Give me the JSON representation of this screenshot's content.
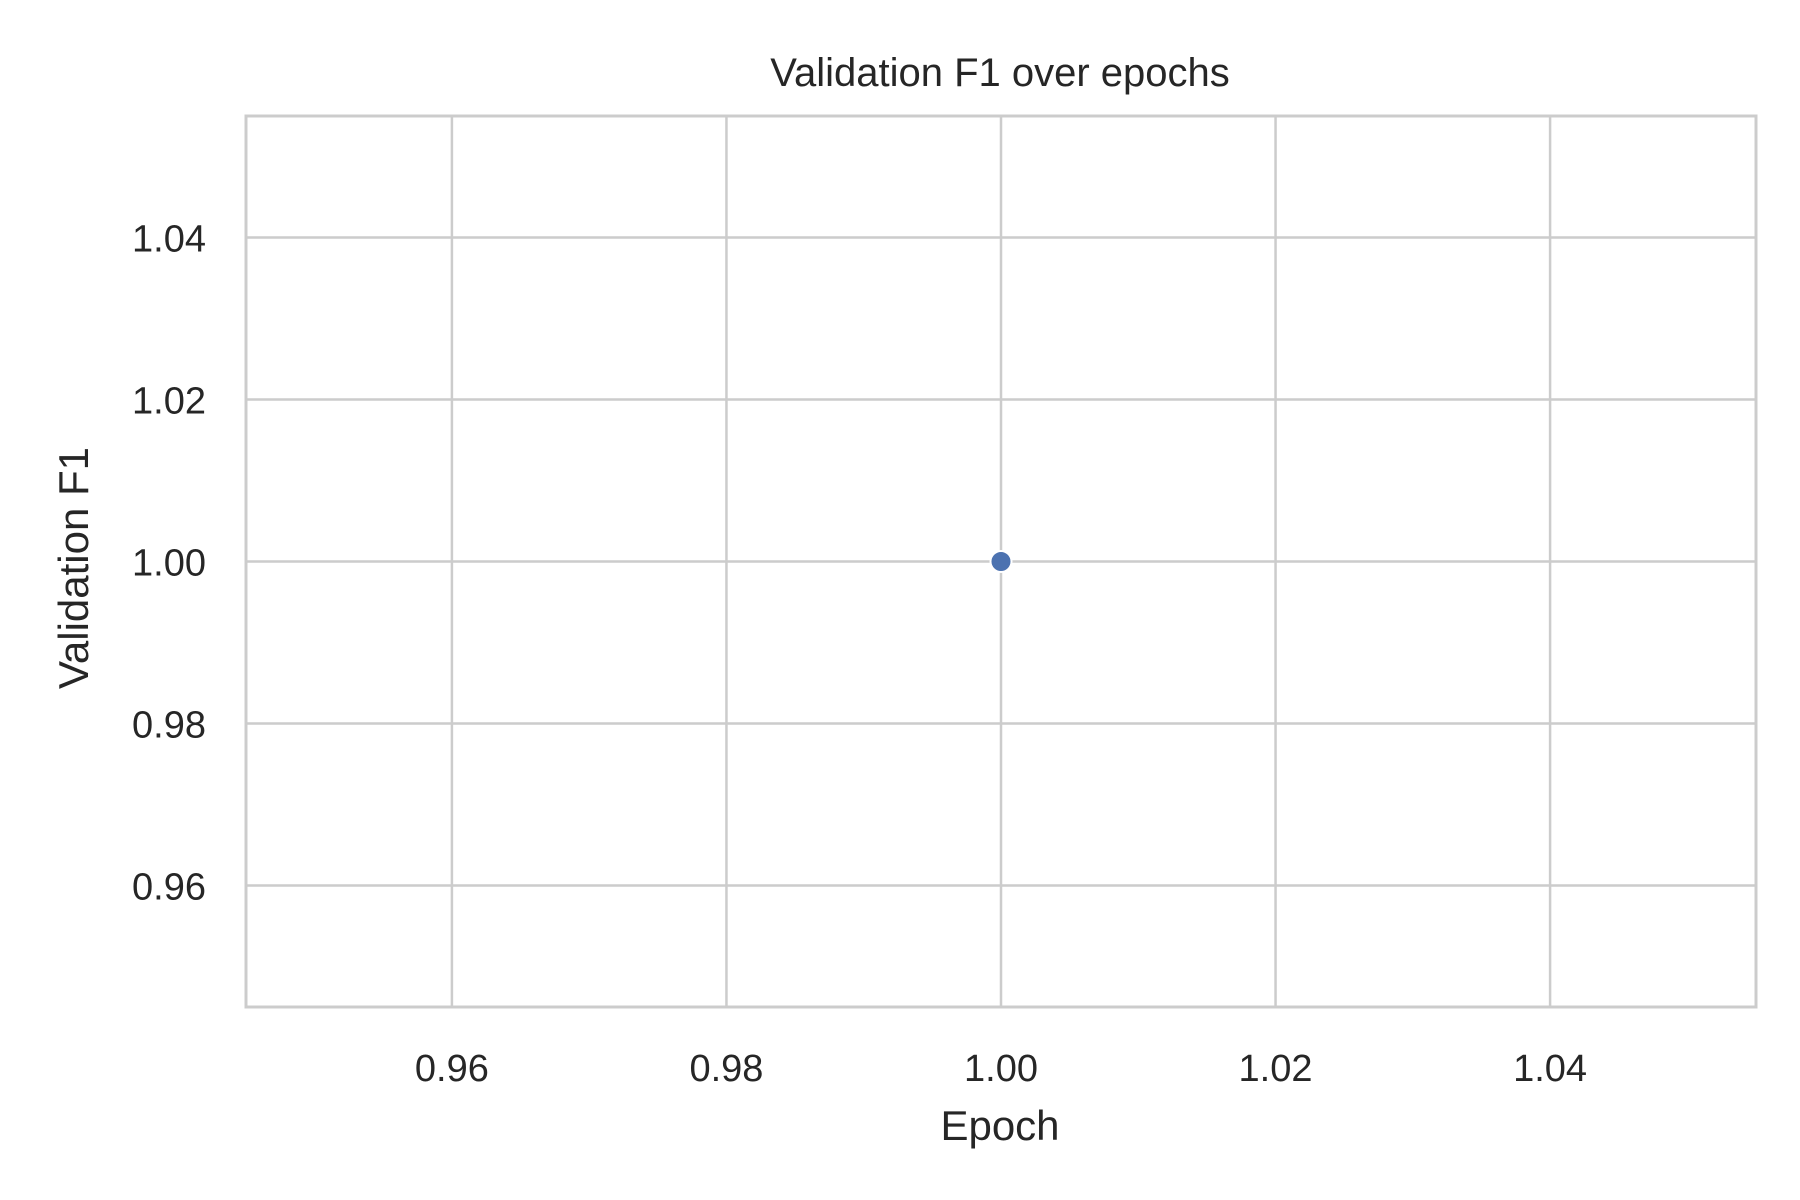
{
  "chart_data": {
    "type": "scatter",
    "title": "Validation F1 over epochs",
    "xlabel": "Epoch",
    "ylabel": "Validation F1",
    "x": [
      1
    ],
    "y": [
      1.0
    ],
    "xlim": [
      0.945,
      1.055
    ],
    "ylim": [
      0.945,
      1.055
    ],
    "xticks": [
      0.96,
      0.98,
      1.0,
      1.02,
      1.04
    ],
    "yticks": [
      0.96,
      0.98,
      1.0,
      1.02,
      1.04
    ],
    "xtick_labels": [
      "0.96",
      "0.98",
      "1.00",
      "1.02",
      "1.04"
    ],
    "ytick_labels": [
      "0.96",
      "0.98",
      "1.00",
      "1.02",
      "1.04"
    ],
    "grid": true,
    "marker_color": "#4c72b0",
    "grid_color": "#cccccc",
    "text_color": "#262626",
    "series": [
      {
        "x": [
          1
        ],
        "y": [
          1.0
        ]
      }
    ]
  }
}
